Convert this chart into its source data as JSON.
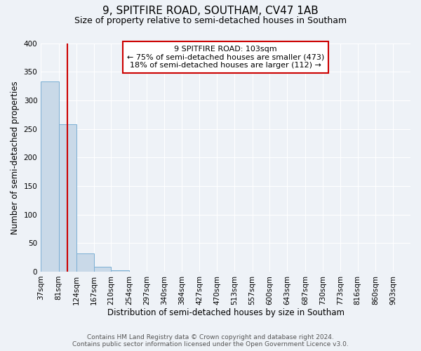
{
  "title": "9, SPITFIRE ROAD, SOUTHAM, CV47 1AB",
  "subtitle": "Size of property relative to semi-detached houses in Southam",
  "xlabel": "Distribution of semi-detached houses by size in Southam",
  "ylabel": "Number of semi-detached properties",
  "bin_labels": [
    "37sqm",
    "81sqm",
    "124sqm",
    "167sqm",
    "210sqm",
    "254sqm",
    "297sqm",
    "340sqm",
    "384sqm",
    "427sqm",
    "470sqm",
    "513sqm",
    "557sqm",
    "600sqm",
    "643sqm",
    "687sqm",
    "730sqm",
    "773sqm",
    "816sqm",
    "860sqm",
    "903sqm"
  ],
  "bar_heights": [
    333,
    258,
    32,
    8,
    2,
    0,
    0,
    0,
    0,
    0,
    0,
    0,
    0,
    0,
    0,
    0,
    0,
    0,
    0,
    0,
    0
  ],
  "bar_color": "#c9d9e8",
  "bar_edgecolor": "#7bafd4",
  "property_line_x": 103,
  "bin_edges": [
    37,
    81,
    124,
    167,
    210,
    254,
    297,
    340,
    384,
    427,
    470,
    513,
    557,
    600,
    643,
    687,
    730,
    773,
    816,
    860,
    903,
    946
  ],
  "annotation_box_text": "9 SPITFIRE ROAD: 103sqm\n← 75% of semi-detached houses are smaller (473)\n18% of semi-detached houses are larger (112) →",
  "annotation_box_color": "#ffffff",
  "annotation_box_edgecolor": "#cc0000",
  "red_line_color": "#cc0000",
  "ylim": [
    0,
    400
  ],
  "yticks": [
    0,
    50,
    100,
    150,
    200,
    250,
    300,
    350,
    400
  ],
  "footer_line1": "Contains HM Land Registry data © Crown copyright and database right 2024.",
  "footer_line2": "Contains public sector information licensed under the Open Government Licence v3.0.",
  "background_color": "#eef2f7",
  "grid_color": "#ffffff",
  "title_fontsize": 11,
  "subtitle_fontsize": 9,
  "axis_label_fontsize": 8.5,
  "tick_fontsize": 7.5,
  "annotation_fontsize": 8,
  "footer_fontsize": 6.5
}
